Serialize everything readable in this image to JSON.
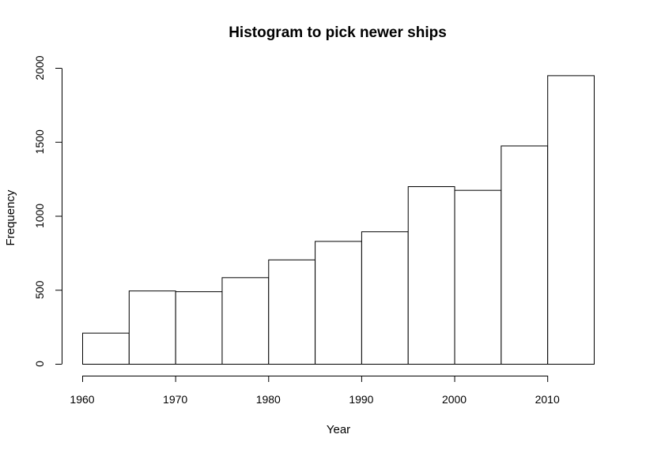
{
  "chart_data": {
    "type": "bar",
    "title": "Histogram to pick newer ships",
    "xlabel": "Year",
    "ylabel": "Frequency",
    "bins": [
      {
        "start": 1960,
        "end": 1965,
        "value": 210
      },
      {
        "start": 1965,
        "end": 1970,
        "value": 495
      },
      {
        "start": 1970,
        "end": 1975,
        "value": 490
      },
      {
        "start": 1975,
        "end": 1980,
        "value": 585
      },
      {
        "start": 1980,
        "end": 1985,
        "value": 705
      },
      {
        "start": 1985,
        "end": 1990,
        "value": 830
      },
      {
        "start": 1990,
        "end": 1995,
        "value": 895
      },
      {
        "start": 1995,
        "end": 2000,
        "value": 1200
      },
      {
        "start": 2000,
        "end": 2005,
        "value": 1175
      },
      {
        "start": 2005,
        "end": 2010,
        "value": 1475
      },
      {
        "start": 2010,
        "end": 2015,
        "value": 1950
      }
    ],
    "xlim": [
      1960,
      2015
    ],
    "ylim": [
      0,
      2000
    ],
    "x_ticks": [
      "1960",
      "1970",
      "1980",
      "1990",
      "2000",
      "2010"
    ],
    "y_ticks": [
      "0",
      "500",
      "1000",
      "1500",
      "2000"
    ],
    "grid": false,
    "legend": "none"
  }
}
